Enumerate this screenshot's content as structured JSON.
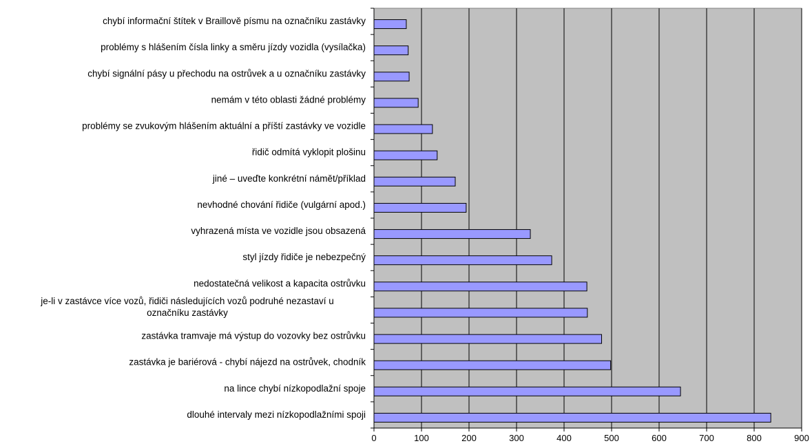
{
  "chart_data": {
    "type": "bar",
    "orientation": "horizontal",
    "title": "",
    "xlabel": "",
    "ylabel": "",
    "xlim": [
      0,
      900
    ],
    "x_ticks": [
      0,
      100,
      200,
      300,
      400,
      500,
      600,
      700,
      800,
      900
    ],
    "grid": "vertical",
    "legend": "none",
    "colors": {
      "plot_background": "#c0c0c0",
      "bar_fill": "#9999ff",
      "bar_stroke": "#000000",
      "grid": "#000000"
    },
    "categories": [
      "chybí informační štítek v Braillově písmu na označníku zastávky",
      "problémy s hlášením čísla linky a směru jízdy vozidla (vysílačka)",
      "chybí signální pásy u přechodu na ostrůvek a u označníku zastávky",
      "nemám v této oblasti žádné problémy",
      "problémy se zvukovým hlášením aktuální a příští zastávky ve vozidle",
      "řidič odmítá vyklopit plošinu",
      "jiné – uveďte konkrétní námět/příklad",
      "nevhodné chování řidiče (vulgární apod.)",
      "vyhrazená místa ve vozidle jsou obsazená",
      "styl jízdy řidiče je nebezpečný",
      "nedostatečná velikost a kapacita ostrůvku",
      "je-li v zastávce více vozů, řidiči následujících vozů podruhé nezastaví u označníku zastávky",
      "zastávka tramvaje má výstup do vozovky bez ostrůvku",
      "zastávka je bariérová  - chybí nájezd na ostrůvek, chodník",
      "na lince chybí nízkopodlažní spoje",
      "dlouhé intervaly mezi nízkopodlažními spoji"
    ],
    "values": [
      68,
      72,
      74,
      93,
      123,
      133,
      171,
      194,
      329,
      374,
      448,
      449,
      479,
      498,
      645,
      835
    ]
  }
}
